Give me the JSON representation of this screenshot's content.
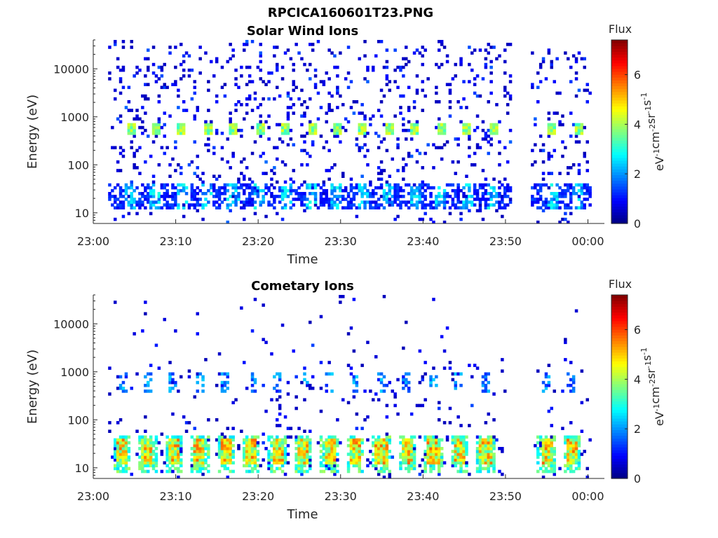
{
  "figure_title": "RPCICA160601T23.PNG",
  "chart_data": [
    {
      "type": "heatmap",
      "title": "Solar Wind Ions",
      "xlabel": "Time",
      "ylabel": "Energy (eV)",
      "x_ticks": [
        "23:00",
        "23:10",
        "23:20",
        "23:30",
        "23:40",
        "23:50",
        "00:00"
      ],
      "x_range_min": [
        0,
        62
      ],
      "y_scale": "log",
      "y_ticks": [
        "10",
        "100",
        "1000",
        "10000"
      ],
      "y_range": [
        6,
        40000
      ],
      "data_gap_min": [
        50.5,
        52.8
      ],
      "colorbar": {
        "title": "Flux",
        "label": "eV-1cm-2sr-1s-1",
        "ticks": [
          "0",
          "2",
          "4",
          "6"
        ],
        "range": [
          0,
          7.4
        ],
        "colormap": "jet"
      },
      "pattern": "sparse low-flux counts across all energies; periodic enhanced bursts near 500-700 eV and at 10-40 eV",
      "burst_energy_eV": 600,
      "burst_peak_flux": 4.5,
      "burst_times_min": [
        4.3,
        7.4,
        10.6,
        13.7,
        16.8,
        20.0,
        23.2,
        26.3,
        29.4,
        32.5,
        35.7,
        38.8,
        42.0,
        45.1,
        48.3,
        55.5,
        58.6
      ],
      "low_energy_band_eV": [
        12,
        40
      ],
      "low_energy_peak_flux": 3.0
    },
    {
      "type": "heatmap",
      "title": "Cometary Ions",
      "xlabel": "Time",
      "ylabel": "Energy (eV)",
      "x_ticks": [
        "23:00",
        "23:10",
        "23:20",
        "23:30",
        "23:40",
        "23:50",
        "00:00"
      ],
      "x_range_min": [
        0,
        62
      ],
      "y_scale": "log",
      "y_ticks": [
        "10",
        "100",
        "1000",
        "10000"
      ],
      "y_range": [
        6,
        40000
      ],
      "data_gap_min": [
        50.5,
        52.8
      ],
      "colorbar": {
        "title": "Flux",
        "label": "eV-1cm-2sr-1s-1",
        "ticks": [
          "0",
          "2",
          "4",
          "6"
        ],
        "range": [
          0,
          7.4
        ],
        "colormap": "jet"
      },
      "pattern": "strong periodic bursts at 10-40 eV with sparse counts up to ~20 keV",
      "burst_energy_eV": [
        12,
        40
      ],
      "burst_peak_flux": 5.8,
      "burst_times_min": [
        3.3,
        6.4,
        9.6,
        12.7,
        15.9,
        19.0,
        22.2,
        25.3,
        28.5,
        31.6,
        34.8,
        37.9,
        41.1,
        44.2,
        47.4,
        54.8,
        57.9
      ]
    }
  ]
}
